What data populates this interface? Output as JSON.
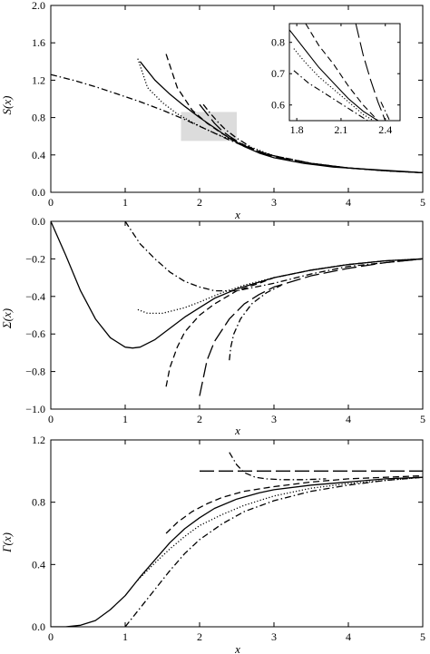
{
  "chart_data": [
    {
      "type": "line",
      "id": "top",
      "xlabel": "x",
      "ylabel": "S(x)",
      "xlim": [
        0,
        5
      ],
      "ylim": [
        0,
        2.0
      ],
      "xticks": [
        "0",
        "1",
        "2",
        "3",
        "4",
        "5"
      ],
      "yticks": [
        "0.0",
        "0.4",
        "0.8",
        "1.2",
        "1.6",
        "2.0"
      ],
      "highlight_region": {
        "x": [
          1.75,
          2.5
        ],
        "y": [
          0.55,
          0.86
        ],
        "color": "#dcdcdc"
      },
      "series": [
        {
          "style": "solid",
          "x": [
            1.2,
            1.4,
            1.6,
            1.8,
            2.0,
            2.2,
            2.4,
            2.6,
            2.8,
            3.0,
            3.2,
            3.4,
            3.6,
            3.8,
            4.0,
            4.2,
            4.4,
            4.6,
            4.8,
            5.0
          ],
          "y": [
            1.4,
            1.2,
            1.05,
            0.92,
            0.8,
            0.69,
            0.58,
            0.49,
            0.42,
            0.37,
            0.34,
            0.31,
            0.29,
            0.27,
            0.26,
            0.25,
            0.24,
            0.23,
            0.22,
            0.21
          ]
        },
        {
          "style": "long-dash",
          "x": [
            2.0,
            2.1,
            2.2,
            2.3,
            2.4,
            2.6,
            2.8,
            3.0,
            3.5,
            4.0,
            4.5,
            5.0
          ],
          "y": [
            0.94,
            0.84,
            0.74,
            0.66,
            0.6,
            0.5,
            0.43,
            0.38,
            0.31,
            0.26,
            0.23,
            0.21
          ]
        },
        {
          "style": "dashed",
          "x": [
            1.55,
            1.7,
            1.9,
            2.1,
            2.3,
            2.5,
            2.8,
            3.0,
            3.5,
            4.0,
            4.5,
            5.0
          ],
          "y": [
            1.48,
            1.12,
            0.88,
            0.74,
            0.63,
            0.54,
            0.44,
            0.39,
            0.31,
            0.26,
            0.23,
            0.21
          ]
        },
        {
          "style": "dotted",
          "x": [
            1.17,
            1.3,
            1.5,
            1.7,
            1.9,
            2.1,
            2.3,
            2.6,
            3.0,
            3.5,
            4.0,
            4.5,
            5.0
          ],
          "y": [
            1.43,
            1.12,
            0.96,
            0.84,
            0.75,
            0.67,
            0.6,
            0.51,
            0.39,
            0.31,
            0.26,
            0.23,
            0.21
          ]
        },
        {
          "style": "dash-dot",
          "x": [
            0.0,
            0.3,
            0.6,
            0.9,
            1.2,
            1.5,
            1.8,
            2.1,
            2.4,
            2.7,
            3.0,
            3.5,
            4.0,
            4.5,
            5.0
          ],
          "y": [
            1.26,
            1.2,
            1.13,
            1.05,
            0.97,
            0.88,
            0.78,
            0.67,
            0.56,
            0.46,
            0.39,
            0.31,
            0.26,
            0.23,
            0.21
          ]
        },
        {
          "style": "dash-dot",
          "x": [
            2.05,
            2.15,
            2.25,
            2.35,
            2.5,
            2.7
          ],
          "y": [
            0.94,
            0.84,
            0.75,
            0.67,
            0.58,
            0.48
          ]
        }
      ]
    },
    {
      "type": "line",
      "id": "inset",
      "xlim": [
        1.75,
        2.5
      ],
      "ylim": [
        0.55,
        0.86
      ],
      "xticks": [
        "1.8",
        "2.1",
        "2.4"
      ],
      "yticks": [
        "0.6",
        "0.7",
        "0.8"
      ],
      "series": [
        {
          "style": "solid",
          "x": [
            1.75,
            1.85,
            1.95,
            2.05,
            2.15,
            2.25,
            2.35
          ],
          "y": [
            0.84,
            0.78,
            0.72,
            0.67,
            0.62,
            0.58,
            0.55
          ]
        },
        {
          "style": "long-dash",
          "x": [
            2.2,
            2.25,
            2.3,
            2.35,
            2.4
          ],
          "y": [
            0.86,
            0.76,
            0.68,
            0.61,
            0.55
          ]
        },
        {
          "style": "dashed",
          "x": [
            1.86,
            1.95,
            2.05,
            2.15,
            2.25,
            2.35
          ],
          "y": [
            0.86,
            0.79,
            0.73,
            0.66,
            0.6,
            0.55
          ]
        },
        {
          "style": "dotted",
          "x": [
            1.78,
            1.85,
            1.95,
            2.05,
            2.15,
            2.25,
            2.32
          ],
          "y": [
            0.78,
            0.74,
            0.69,
            0.65,
            0.61,
            0.57,
            0.55
          ]
        },
        {
          "style": "dash-dot",
          "x": [
            1.78,
            1.88,
            1.98,
            2.08,
            2.18,
            2.28
          ],
          "y": [
            0.71,
            0.67,
            0.64,
            0.61,
            0.58,
            0.55
          ]
        },
        {
          "style": "dash-dot",
          "x": [
            2.37,
            2.4,
            2.43
          ],
          "y": [
            0.61,
            0.58,
            0.55
          ]
        }
      ]
    },
    {
      "type": "line",
      "id": "middle",
      "xlabel": "x",
      "ylabel": "Σ(x)",
      "xlim": [
        0,
        5
      ],
      "ylim": [
        -1.0,
        0.0
      ],
      "xticks": [
        "0",
        "1",
        "2",
        "3",
        "4",
        "5"
      ],
      "yticks": [
        "0.0",
        "−0.2",
        "−0.4",
        "−0.6",
        "−0.8",
        "−1.0"
      ],
      "series": [
        {
          "style": "solid",
          "x": [
            0.0,
            0.2,
            0.4,
            0.6,
            0.8,
            1.0,
            1.1,
            1.2,
            1.4,
            1.6,
            1.8,
            2.0,
            2.2,
            2.5,
            3.0,
            3.5,
            4.0,
            4.5,
            5.0
          ],
          "y": [
            0.0,
            -0.18,
            -0.37,
            -0.52,
            -0.62,
            -0.67,
            -0.675,
            -0.67,
            -0.63,
            -0.57,
            -0.51,
            -0.46,
            -0.41,
            -0.36,
            -0.3,
            -0.26,
            -0.23,
            -0.21,
            -0.2
          ]
        },
        {
          "style": "long-dash",
          "x": [
            2.0,
            2.1,
            2.2,
            2.4,
            2.6,
            2.8,
            3.0,
            3.5,
            4.0,
            4.5,
            5.0
          ],
          "y": [
            -0.93,
            -0.74,
            -0.64,
            -0.52,
            -0.44,
            -0.39,
            -0.35,
            -0.29,
            -0.25,
            -0.22,
            -0.2
          ]
        },
        {
          "style": "dashed",
          "x": [
            1.55,
            1.6,
            1.7,
            1.8,
            2.0,
            2.2,
            2.5,
            2.8,
            3.0,
            3.5,
            4.0,
            4.5,
            5.0
          ],
          "y": [
            -0.88,
            -0.78,
            -0.67,
            -0.59,
            -0.5,
            -0.44,
            -0.37,
            -0.33,
            -0.3,
            -0.26,
            -0.23,
            -0.21,
            -0.2
          ]
        },
        {
          "style": "dotted",
          "x": [
            1.17,
            1.3,
            1.5,
            1.8,
            2.0,
            2.3,
            2.6,
            3.0,
            3.5,
            4.0,
            4.5,
            5.0
          ],
          "y": [
            -0.47,
            -0.49,
            -0.49,
            -0.46,
            -0.43,
            -0.38,
            -0.34,
            -0.3,
            -0.26,
            -0.23,
            -0.21,
            -0.2
          ]
        },
        {
          "style": "dash-dot",
          "x": [
            1.0,
            1.2,
            1.4,
            1.6,
            1.8,
            2.0,
            2.2,
            2.5,
            3.0,
            3.5,
            4.0,
            4.5,
            5.0
          ],
          "y": [
            0.0,
            -0.12,
            -0.2,
            -0.27,
            -0.32,
            -0.35,
            -0.37,
            -0.37,
            -0.33,
            -0.28,
            -0.24,
            -0.22,
            -0.2
          ]
        },
        {
          "style": "dash-dot",
          "x": [
            2.4,
            2.42,
            2.46,
            2.55,
            2.7,
            2.9,
            3.1
          ],
          "y": [
            -0.74,
            -0.67,
            -0.6,
            -0.52,
            -0.44,
            -0.38,
            -0.34
          ]
        }
      ]
    },
    {
      "type": "line",
      "id": "bottom",
      "xlabel": "x",
      "ylabel": "Γ(x)",
      "xlim": [
        0,
        5
      ],
      "ylim": [
        0,
        1.2
      ],
      "xticks": [
        "0",
        "1",
        "2",
        "3",
        "4",
        "5"
      ],
      "yticks": [
        "0.0",
        "0.4",
        "0.8",
        "1.2"
      ],
      "series": [
        {
          "style": "solid",
          "x": [
            0.0,
            0.2,
            0.4,
            0.6,
            0.8,
            1.0,
            1.2,
            1.4,
            1.6,
            1.8,
            2.0,
            2.2,
            2.5,
            2.8,
            3.0,
            3.5,
            4.0,
            4.5,
            5.0
          ],
          "y": [
            0.0,
            0.0,
            0.01,
            0.04,
            0.11,
            0.2,
            0.32,
            0.43,
            0.54,
            0.63,
            0.7,
            0.76,
            0.82,
            0.86,
            0.88,
            0.91,
            0.93,
            0.95,
            0.96
          ]
        },
        {
          "style": "long-dash",
          "x": [
            2.0,
            5.0
          ],
          "y": [
            1.0,
            1.0
          ]
        },
        {
          "style": "dashed",
          "x": [
            1.55,
            1.7,
            1.9,
            2.1,
            2.3,
            2.6,
            3.0,
            3.5,
            4.0,
            4.5,
            5.0
          ],
          "y": [
            0.6,
            0.67,
            0.74,
            0.79,
            0.83,
            0.87,
            0.9,
            0.93,
            0.95,
            0.96,
            0.97
          ]
        },
        {
          "style": "dotted",
          "x": [
            1.17,
            1.4,
            1.6,
            1.8,
            2.0,
            2.3,
            2.6,
            3.0,
            3.5,
            4.0,
            4.5,
            5.0
          ],
          "y": [
            0.3,
            0.41,
            0.5,
            0.58,
            0.65,
            0.72,
            0.78,
            0.84,
            0.89,
            0.92,
            0.94,
            0.96
          ]
        },
        {
          "style": "dash-dot",
          "x": [
            1.0,
            1.2,
            1.4,
            1.6,
            1.8,
            2.0,
            2.3,
            2.6,
            3.0,
            3.5,
            4.0,
            4.5,
            5.0
          ],
          "y": [
            0.0,
            0.12,
            0.24,
            0.36,
            0.47,
            0.56,
            0.66,
            0.74,
            0.81,
            0.87,
            0.91,
            0.94,
            0.96
          ]
        },
        {
          "style": "dash-dot",
          "x": [
            2.4,
            2.5,
            2.6,
            2.75,
            2.9,
            3.1,
            3.4,
            3.7
          ],
          "y": [
            1.12,
            1.04,
            0.99,
            0.96,
            0.95,
            0.945,
            0.945,
            0.95
          ]
        }
      ]
    }
  ]
}
